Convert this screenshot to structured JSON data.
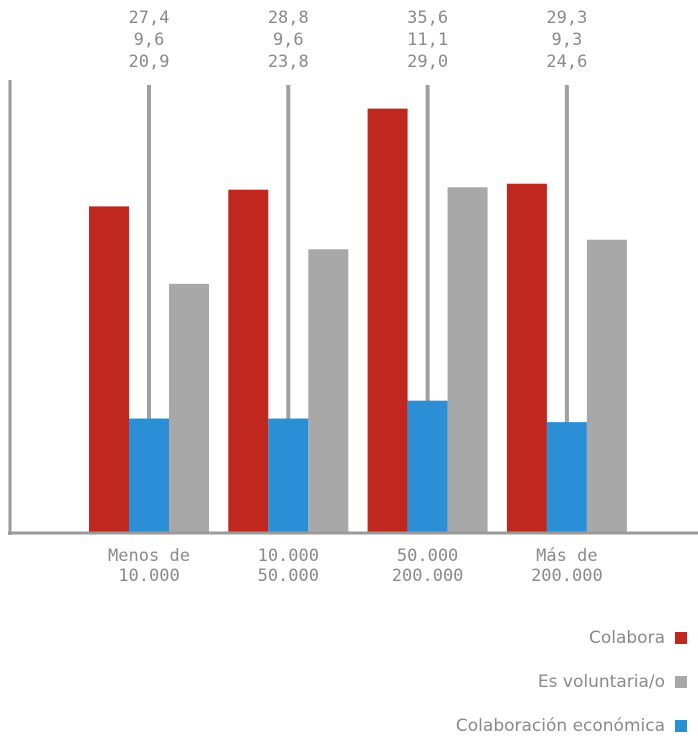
{
  "chart_data": {
    "type": "bar",
    "categories": [
      "Menos de\n10.000",
      "10.000\n50.000",
      "50.000\n200.000",
      "Más de\n200.000"
    ],
    "series": [
      {
        "name": "Colabora",
        "color": "#c0281f",
        "values": [
          27.4,
          28.8,
          35.6,
          29.3
        ],
        "value_labels": [
          "27,4",
          "28,8",
          "35,6",
          "29,3"
        ]
      },
      {
        "name": "Colaboración económica",
        "color": "#2b8fd6",
        "values": [
          9.6,
          9.6,
          11.1,
          9.3
        ],
        "value_labels": [
          "9,6",
          "9,6",
          "11,1",
          "9,3"
        ]
      },
      {
        "name": "Es voluntaria/o",
        "color": "#a8a8a8",
        "values": [
          20.9,
          23.8,
          29.0,
          24.6
        ],
        "value_labels": [
          "20,9",
          "23,8",
          "29,0",
          "24,6"
        ]
      }
    ],
    "ylim": [
      0,
      38
    ]
  }
}
